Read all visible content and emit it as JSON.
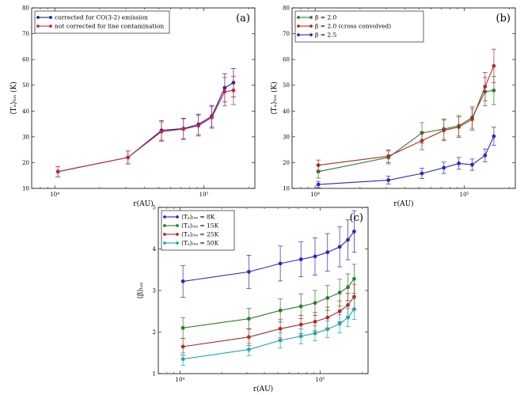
{
  "chart_data": [
    {
      "type": "line",
      "panel_label": "(a)",
      "xscale": "log",
      "xlim": [
        7000,
        220000
      ],
      "ylim": [
        10,
        80
      ],
      "yticks": [
        10,
        20,
        30,
        40,
        50,
        60,
        70,
        80
      ],
      "xticks": [
        {
          "value": 10000,
          "label": "10⁴"
        },
        {
          "value": 100000,
          "label": "10⁵"
        }
      ],
      "xlabel": "r(AU)",
      "ylabel": "⟨Tₐ⟩ₗₒₛ (K)",
      "legend_position": "top-left",
      "series": [
        {
          "name": "corrected for CO(3-2) emission",
          "color": "#1f1f9c",
          "x": [
            10500,
            31000,
            52000,
            73000,
            92000,
            113000,
            138000,
            158000
          ],
          "y": [
            16.5,
            22.0,
            32.5,
            33.2,
            34.8,
            38.0,
            49.0,
            51.0
          ],
          "err": [
            2.0,
            2.5,
            3.8,
            4.0,
            4.0,
            4.2,
            5.5,
            5.5
          ]
        },
        {
          "name": "not corrected for line contamination",
          "color": "#c0294a",
          "x": [
            10500,
            31000,
            52000,
            73000,
            92000,
            113000,
            138000,
            158000
          ],
          "y": [
            16.5,
            22.0,
            32.0,
            33.0,
            34.3,
            37.5,
            47.5,
            48.0
          ],
          "err": [
            2.0,
            2.5,
            3.8,
            4.0,
            4.0,
            4.2,
            5.5,
            5.5
          ]
        }
      ]
    },
    {
      "type": "line",
      "panel_label": "(b)",
      "xscale": "log",
      "xlim": [
        7000,
        220000
      ],
      "ylim": [
        10,
        80
      ],
      "yticks": [
        10,
        20,
        30,
        40,
        50,
        60,
        70,
        80
      ],
      "xticks": [
        {
          "value": 10000,
          "label": "10⁴"
        },
        {
          "value": 100000,
          "label": "10⁵"
        }
      ],
      "xlabel": "r(AU)",
      "ylabel": "⟨Tₐ⟩ₗₒₛ (K)",
      "legend_position": "top-left",
      "series": [
        {
          "name": "β = 2.0",
          "color": "#2a7d2a",
          "x": [
            10500,
            31000,
            52000,
            73000,
            92000,
            113000,
            138000,
            158000
          ],
          "y": [
            16.5,
            22.0,
            31.5,
            33.0,
            34.3,
            37.5,
            47.5,
            48.0
          ],
          "err": [
            2.5,
            2.5,
            4.0,
            4.0,
            4.0,
            4.2,
            5.5,
            5.5
          ]
        },
        {
          "name": "β = 2.0 (cross convolved)",
          "color": "#b02a2a",
          "x": [
            10500,
            31000,
            52000,
            73000,
            92000,
            113000,
            138000,
            158000
          ],
          "y": [
            19.0,
            22.5,
            28.5,
            32.5,
            33.8,
            36.8,
            49.5,
            57.5
          ],
          "err": [
            2.0,
            2.5,
            3.5,
            4.0,
            4.0,
            4.2,
            5.5,
            6.5
          ]
        },
        {
          "name": "β = 2.5",
          "color": "#2828c8",
          "x": [
            10500,
            31000,
            52000,
            73000,
            92000,
            113000,
            138000,
            158000
          ],
          "y": [
            11.5,
            13.2,
            15.8,
            18.0,
            19.7,
            19.2,
            22.8,
            30.2
          ],
          "err": [
            1.2,
            1.5,
            2.0,
            2.2,
            2.3,
            2.2,
            2.5,
            3.5
          ]
        }
      ]
    },
    {
      "type": "line",
      "panel_label": "(c)",
      "xscale": "log",
      "xlim": [
        7000,
        220000
      ],
      "ylim": [
        1.0,
        5.0
      ],
      "yticks": [
        1,
        2,
        3,
        4,
        5
      ],
      "xticks": [
        {
          "value": 10000,
          "label": "10⁴"
        },
        {
          "value": 100000,
          "label": "10⁵"
        }
      ],
      "xlabel": "r(AU)",
      "ylabel": "⟨β⟩ₗₒₛ",
      "legend_position": "top-left",
      "series": [
        {
          "name": "⟨Tₐ⟩ₗₒₛ = 8K",
          "color": "#2828c8",
          "x": [
            10500,
            31000,
            52000,
            73000,
            92000,
            113000,
            138000,
            158000,
            175000
          ],
          "y": [
            3.22,
            3.45,
            3.65,
            3.75,
            3.82,
            3.92,
            4.05,
            4.22,
            4.42
          ],
          "err": [
            0.38,
            0.4,
            0.42,
            0.42,
            0.45,
            0.45,
            0.48,
            0.48,
            0.5
          ]
        },
        {
          "name": "⟨Tₐ⟩ₗₒₛ = 15K",
          "color": "#2a7d2a",
          "x": [
            10500,
            31000,
            52000,
            73000,
            92000,
            113000,
            138000,
            158000,
            175000
          ],
          "y": [
            2.1,
            2.32,
            2.52,
            2.62,
            2.7,
            2.82,
            2.95,
            3.08,
            3.28
          ],
          "err": [
            0.25,
            0.25,
            0.28,
            0.3,
            0.3,
            0.3,
            0.32,
            0.32,
            0.35
          ]
        },
        {
          "name": "⟨Tₐ⟩ₗₒₛ = 25K",
          "color": "#b02a2a",
          "x": [
            10500,
            31000,
            52000,
            73000,
            92000,
            113000,
            138000,
            158000,
            175000
          ],
          "y": [
            1.65,
            1.88,
            2.08,
            2.18,
            2.25,
            2.35,
            2.5,
            2.65,
            2.85
          ],
          "err": [
            0.2,
            0.2,
            0.22,
            0.22,
            0.22,
            0.25,
            0.25,
            0.28,
            0.3
          ]
        },
        {
          "name": "⟨Tₐ⟩ₗₒₛ = 50K",
          "color": "#1aa8a8",
          "x": [
            10500,
            31000,
            52000,
            73000,
            92000,
            113000,
            138000,
            158000,
            175000
          ],
          "y": [
            1.35,
            1.58,
            1.8,
            1.9,
            1.97,
            2.07,
            2.2,
            2.35,
            2.55
          ],
          "err": [
            0.15,
            0.15,
            0.18,
            0.18,
            0.18,
            0.2,
            0.22,
            0.22,
            0.25
          ]
        }
      ]
    }
  ]
}
